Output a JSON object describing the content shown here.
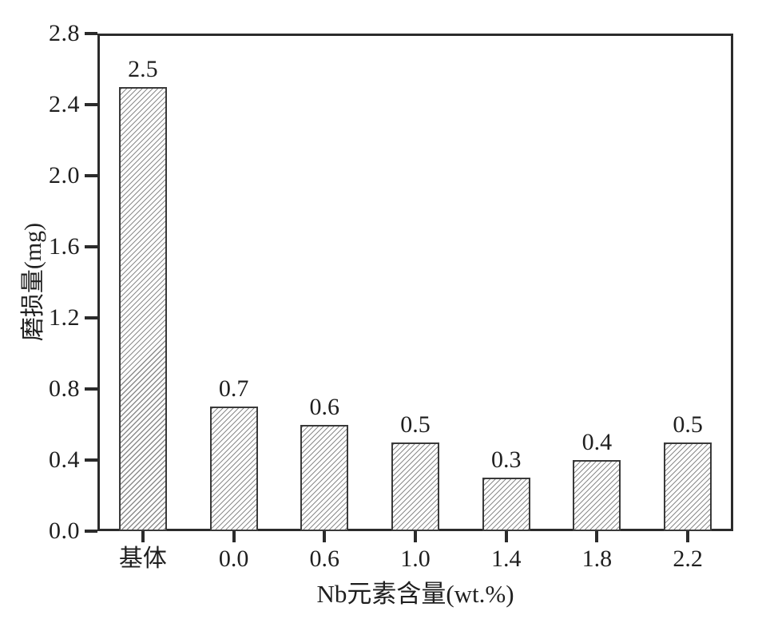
{
  "figure": {
    "background_color": "#ffffff",
    "axis_color": "#2b2b2b",
    "text_color": "#1f1f1f",
    "bar_fill_color": "#ffffff",
    "bar_hatch_color": "#8c8c8c",
    "bar_border_color": "#3a3a3a"
  },
  "chart_data": {
    "type": "bar",
    "title": "",
    "xlabel": "Nb元素含量(wt.%)",
    "ylabel": "磨损量(mg)",
    "categories": [
      "基体",
      "0.0",
      "0.6",
      "1.0",
      "1.4",
      "1.8",
      "2.2"
    ],
    "values": [
      2.5,
      0.7,
      0.6,
      0.5,
      0.3,
      0.4,
      0.5
    ],
    "bar_value_labels": [
      "2.5",
      "0.7",
      "0.6",
      "0.5",
      "0.3",
      "0.4",
      "0.5"
    ],
    "ylim": [
      0.0,
      2.8
    ],
    "yticks": [
      0.0,
      0.4,
      0.8,
      1.2,
      1.6,
      2.0,
      2.4,
      2.8
    ],
    "ytick_labels": [
      "0.0",
      "0.4",
      "0.8",
      "1.2",
      "1.6",
      "2.0",
      "2.4",
      "2.8"
    ],
    "grid": false,
    "legend": "none",
    "hatch_pattern": "/",
    "bar_style": "white fill, gray diagonal hatch, dark outline, value labels above bars"
  }
}
